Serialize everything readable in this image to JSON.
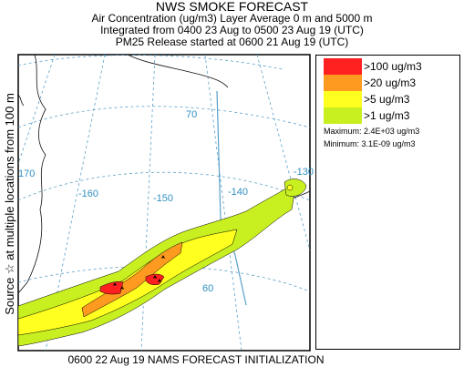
{
  "header": {
    "title": "NWS SMOKE FORECAST",
    "line1": "Air Concentration (ug/m3) Layer Average    0 m and  5000 m",
    "line2": "Integrated from 0400 23 Aug to 0500 23 Aug 19 (UTC)",
    "line3": "PM25 Release started at 0600 21 Aug 19 (UTC)"
  },
  "side_label": "Source ☆  at multiple locations   from  100 m",
  "map": {
    "lon_labels": [
      "170",
      "-160",
      "-150",
      "-140",
      "-130"
    ],
    "lat_labels": [
      "70",
      "60"
    ],
    "colors": {
      "gridline": "#5aa0c8",
      "coast": "#000000",
      "label": "#2f8fc0"
    }
  },
  "legend": {
    "items": [
      {
        "label": ">100 ug/m3",
        "color": "#ff2020"
      },
      {
        "label": ">20 ug/m3",
        "color": "#ff9a20"
      },
      {
        "label": ">5 ug/m3",
        "color": "#ffff20"
      },
      {
        "label": ">1 ug/m3",
        "color": "#c8f020"
      }
    ],
    "maximum": "Maximum: 2.4E+03 ug/m3",
    "minimum": "Minimum: 3.1E-09 ug/m3"
  },
  "footer": "0600 22 Aug 19 NAMS FORECAST INITIALIZATION"
}
